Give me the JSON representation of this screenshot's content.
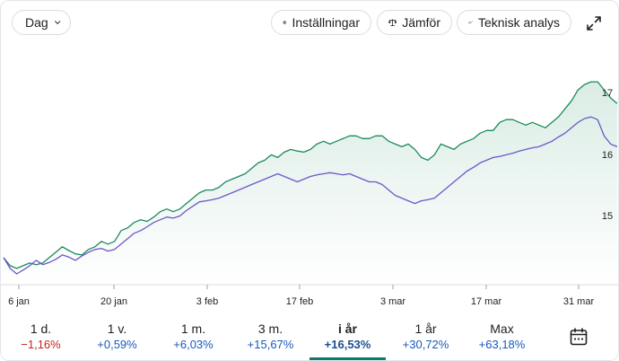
{
  "toolbar": {
    "range_label": "Dag",
    "settings_label": "Inställningar",
    "compare_label": "Jämför",
    "technical_label": "Teknisk analys"
  },
  "icons": {
    "range": "chevron-down-icon",
    "settings": "gear-icon",
    "compare": "scale-icon",
    "technical": "trend-line-icon",
    "expand": "expand-icon",
    "calendar": "calendar-icon"
  },
  "colors": {
    "primary_line": "#1a8a5a",
    "comparison_line": "#6d57c9",
    "negative": "#c5221f",
    "positive": "#185abc",
    "active_underline": "#0b7c6c"
  },
  "chart_data": {
    "type": "line",
    "x_ticks": [
      "6 jan",
      "20 jan",
      "3 feb",
      "17 feb",
      "3 mar",
      "17 mar",
      "31 mar"
    ],
    "y_ticks": [
      "15",
      "16",
      "17"
    ],
    "ylim": [
      13.35,
      17.4
    ],
    "series": [
      {
        "values": [
          13.85,
          13.7,
          13.65,
          13.7,
          13.75,
          13.72,
          13.75,
          13.85,
          13.95,
          14.05,
          13.98,
          13.92,
          13.9,
          14.0,
          14.05,
          14.15,
          14.1,
          14.15,
          14.35,
          14.4,
          14.5,
          14.55,
          14.52,
          14.6,
          14.7,
          14.75,
          14.7,
          14.75,
          14.85,
          14.95,
          15.05,
          15.1,
          15.1,
          15.15,
          15.25,
          15.3,
          15.35,
          15.4,
          15.5,
          15.6,
          15.65,
          15.75,
          15.7,
          15.8,
          15.85,
          15.82,
          15.8,
          15.85,
          15.95,
          16.0,
          15.95,
          16.0,
          16.05,
          16.1,
          16.1,
          16.05,
          16.05,
          16.1,
          16.1,
          16.0,
          15.95,
          15.9,
          15.95,
          15.85,
          15.7,
          15.65,
          15.75,
          15.95,
          15.9,
          15.85,
          15.95,
          16.0,
          16.05,
          16.15,
          16.2,
          16.2,
          16.35,
          16.4,
          16.4,
          16.35,
          16.3,
          16.35,
          16.3,
          16.25,
          16.35,
          16.45,
          16.6,
          16.75,
          16.95,
          17.05,
          17.1,
          17.1,
          16.95,
          16.8,
          16.7
        ],
        "label": "17"
      },
      {
        "values": [
          13.85,
          13.65,
          13.55,
          13.62,
          13.7,
          13.8,
          13.72,
          13.76,
          13.82,
          13.9,
          13.86,
          13.8,
          13.88,
          13.95,
          14.0,
          14.02,
          13.97,
          14.0,
          14.1,
          14.2,
          14.3,
          14.35,
          14.42,
          14.5,
          14.55,
          14.6,
          14.58,
          14.62,
          14.72,
          14.8,
          14.88,
          14.9,
          14.92,
          14.95,
          15.0,
          15.05,
          15.1,
          15.15,
          15.2,
          15.25,
          15.3,
          15.35,
          15.4,
          15.35,
          15.3,
          15.25,
          15.3,
          15.35,
          15.38,
          15.4,
          15.42,
          15.4,
          15.38,
          15.4,
          15.35,
          15.3,
          15.25,
          15.25,
          15.2,
          15.1,
          15.0,
          14.95,
          14.9,
          14.85,
          14.9,
          14.92,
          14.95,
          15.05,
          15.15,
          15.25,
          15.35,
          15.45,
          15.52,
          15.6,
          15.65,
          15.7,
          15.72,
          15.75,
          15.78,
          15.82,
          15.85,
          15.88,
          15.9,
          15.95,
          16.0,
          16.08,
          16.15,
          16.25,
          16.35,
          16.42,
          16.45,
          16.4,
          16.1,
          15.95,
          15.9
        ],
        "label": "16"
      }
    ]
  },
  "tabs": [
    {
      "label": "1 d.",
      "change": "−1,16%",
      "sign": "negative"
    },
    {
      "label": "1 v.",
      "change": "+0,59%",
      "sign": "positive"
    },
    {
      "label": "1 m.",
      "change": "+6,03%",
      "sign": "positive"
    },
    {
      "label": "3 m.",
      "change": "+15,67%",
      "sign": "positive"
    },
    {
      "label": "i år",
      "change": "+16,53%",
      "sign": "positive",
      "active": true
    },
    {
      "label": "1 år",
      "change": "+30,72%",
      "sign": "positive"
    },
    {
      "label": "Max",
      "change": "+63,18%",
      "sign": "positive"
    }
  ]
}
